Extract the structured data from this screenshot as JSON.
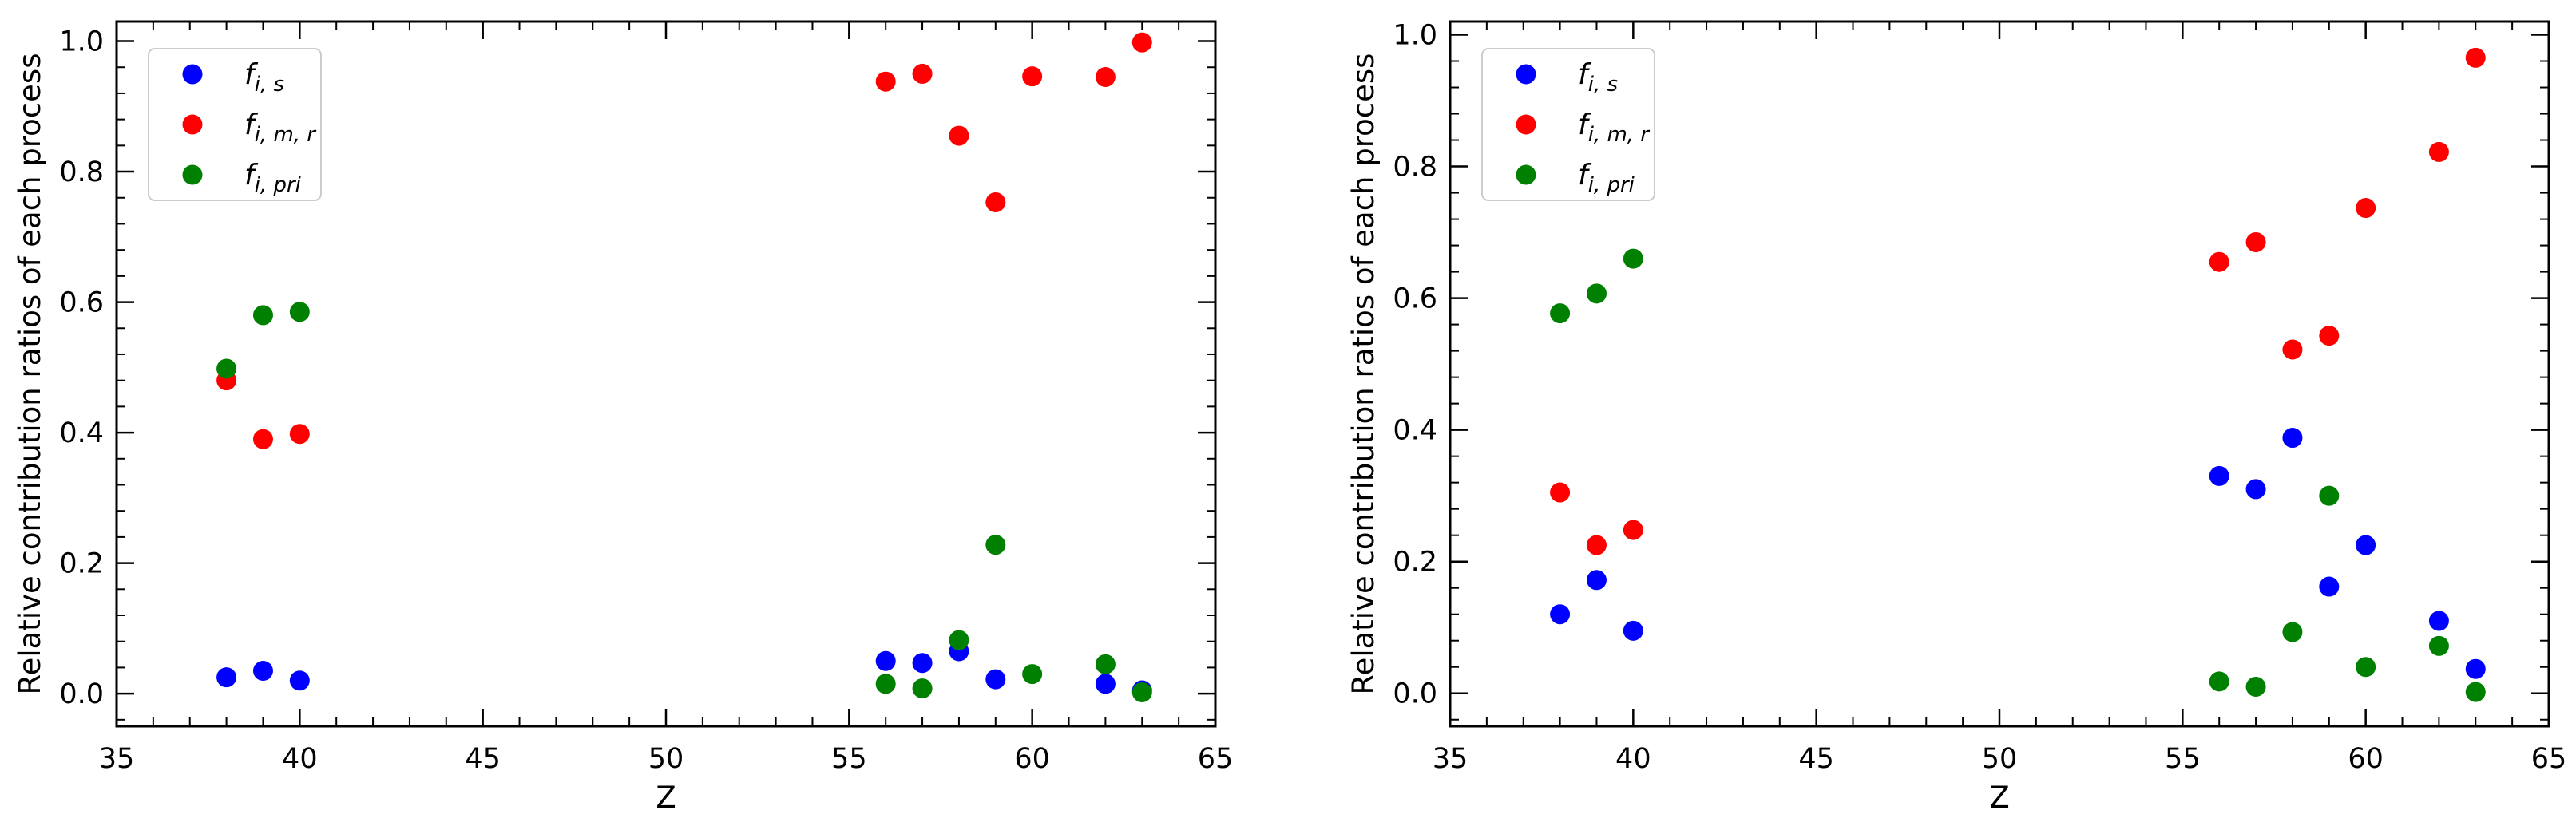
{
  "chart_data": [
    {
      "type": "scatter",
      "xlabel": "Z",
      "ylabel": "Relative contribution ratios of each process",
      "xlim": [
        35,
        65
      ],
      "ylim": [
        -0.05,
        1.03
      ],
      "xticks": [
        "35",
        "40",
        "45",
        "50",
        "55",
        "60",
        "65"
      ],
      "yticks": [
        "0.0",
        "0.2",
        "0.4",
        "0.6",
        "0.8",
        "1.0"
      ],
      "grid": false,
      "legend_position": "top-left",
      "series": [
        {
          "name": "f_{i,s}",
          "legend": {
            "base": "f",
            "sub": "i, s"
          },
          "color": "#0000ff",
          "x": [
            38,
            39,
            40,
            56,
            57,
            58,
            59,
            62,
            63
          ],
          "y": [
            0.025,
            0.035,
            0.02,
            0.05,
            0.047,
            0.065,
            0.022,
            0.015,
            0.005
          ]
        },
        {
          "name": "f_{i,m,r}",
          "legend": {
            "base": "f",
            "sub": "i, m, r"
          },
          "color": "#ff0000",
          "x": [
            38,
            39,
            40,
            56,
            57,
            58,
            59,
            60,
            62,
            63
          ],
          "y": [
            0.48,
            0.39,
            0.398,
            0.938,
            0.95,
            0.855,
            0.753,
            0.946,
            0.945,
            0.998
          ]
        },
        {
          "name": "f_{i,pri}",
          "legend": {
            "base": "f",
            "sub": "i, pri"
          },
          "color": "#008000",
          "x": [
            38,
            39,
            40,
            56,
            57,
            58,
            59,
            60,
            62,
            63
          ],
          "y": [
            0.498,
            0.58,
            0.585,
            0.015,
            0.008,
            0.082,
            0.228,
            0.03,
            0.045,
            0.002
          ]
        }
      ]
    },
    {
      "type": "scatter",
      "xlabel": "Z",
      "ylabel": "Relative contribution ratios of each process",
      "xlim": [
        35,
        65
      ],
      "ylim": [
        -0.05,
        1.02
      ],
      "xticks": [
        "35",
        "40",
        "45",
        "50",
        "55",
        "60",
        "65"
      ],
      "yticks": [
        "0.0",
        "0.2",
        "0.4",
        "0.6",
        "0.8",
        "1.0"
      ],
      "grid": false,
      "legend_position": "top-left",
      "series": [
        {
          "name": "f_{i,s}",
          "legend": {
            "base": "f",
            "sub": "i, s"
          },
          "color": "#0000ff",
          "x": [
            38,
            39,
            40,
            56,
            57,
            58,
            59,
            60,
            62,
            63
          ],
          "y": [
            0.12,
            0.172,
            0.095,
            0.33,
            0.31,
            0.388,
            0.162,
            0.225,
            0.11,
            0.037
          ]
        },
        {
          "name": "f_{i,m,r}",
          "legend": {
            "base": "f",
            "sub": "i, m, r"
          },
          "color": "#ff0000",
          "x": [
            38,
            39,
            40,
            56,
            57,
            58,
            59,
            60,
            62,
            63
          ],
          "y": [
            0.305,
            0.225,
            0.248,
            0.655,
            0.685,
            0.522,
            0.543,
            0.737,
            0.822,
            0.965
          ]
        },
        {
          "name": "f_{i,pri}",
          "legend": {
            "base": "f",
            "sub": "i, pri"
          },
          "color": "#008000",
          "x": [
            38,
            39,
            40,
            56,
            57,
            58,
            59,
            60,
            62,
            63
          ],
          "y": [
            0.577,
            0.607,
            0.66,
            0.018,
            0.01,
            0.093,
            0.3,
            0.04,
            0.072,
            0.002
          ]
        }
      ]
    }
  ]
}
